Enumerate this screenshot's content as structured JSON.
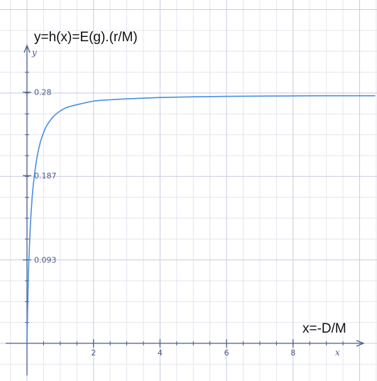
{
  "chart_data": {
    "type": "line",
    "function_label": "y=h(x)=E(g).(r/M)",
    "x_annotation": "x=-D/M",
    "xlabel": "x",
    "ylabel": "y",
    "xlim": [
      -0.1,
      10.4
    ],
    "ylim": [
      -0.018,
      0.32
    ],
    "x_ticks": [
      2,
      4,
      6,
      8
    ],
    "x_tick_labels": [
      "2",
      "4",
      "6",
      "8"
    ],
    "y_ticks": [
      0.093,
      0.187,
      0.28
    ],
    "y_tick_labels": [
      "0.093",
      "0.187",
      "0.28"
    ],
    "grid": true,
    "series": [
      {
        "x": [
          0,
          0.02,
          0.05,
          0.1,
          0.15,
          0.2,
          0.3,
          0.4,
          0.5,
          0.6,
          0.8,
          1.0,
          1.2,
          1.5,
          2.0,
          2.5,
          3.0,
          4.0,
          5.0,
          6.0,
          7.0,
          8.0,
          9.0,
          10.0
        ],
        "y": [
          0.0,
          0.04,
          0.085,
          0.13,
          0.16,
          0.18,
          0.207,
          0.224,
          0.235,
          0.243,
          0.253,
          0.259,
          0.263,
          0.266,
          0.27,
          0.2715,
          0.2725,
          0.274,
          0.2748,
          0.2753,
          0.2756,
          0.2758,
          0.276,
          0.276
        ],
        "color": "#4a8fe0"
      }
    ]
  }
}
